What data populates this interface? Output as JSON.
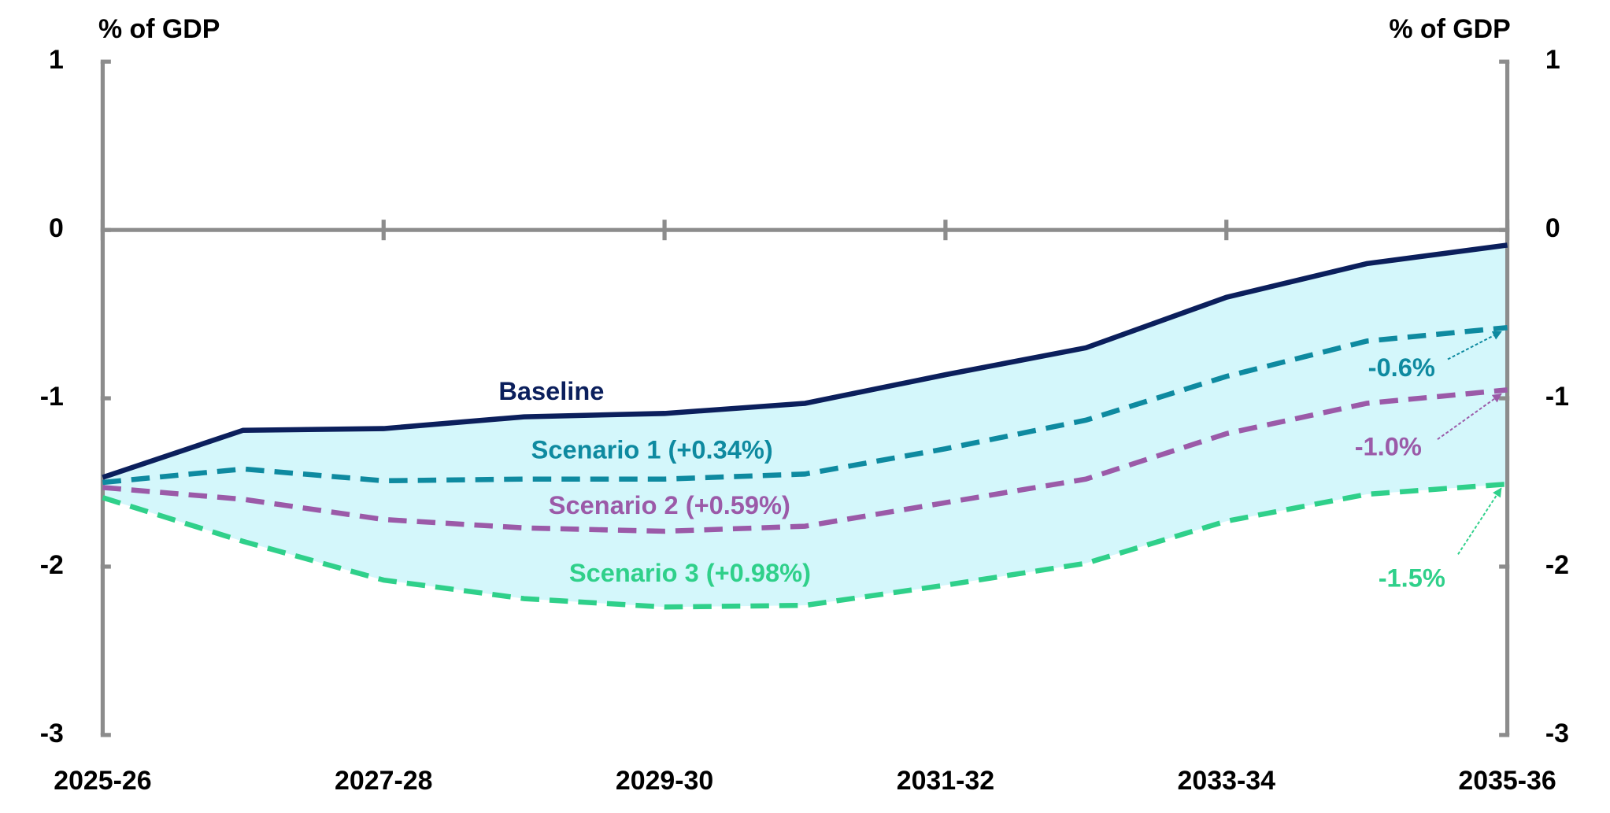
{
  "chart_data": {
    "type": "line",
    "y_label": "% of GDP",
    "y2_label": "% of GDP",
    "categories": [
      "2025-26",
      null,
      "2027-28",
      null,
      "2029-30",
      null,
      "2031-32",
      null,
      "2033-34",
      null,
      "2035-36"
    ],
    "ylim": [
      -3,
      1
    ],
    "yticks": [
      -3,
      -2,
      -1,
      0,
      1
    ],
    "y2lim": [
      -3,
      1
    ],
    "y2ticks": [
      -3,
      -2,
      -1,
      0,
      1
    ],
    "band_color": "#d4f7fb",
    "axis_color": "#8c8c8c",
    "series": [
      {
        "name": "Baseline",
        "color": "#0b1f5c",
        "dashed": false,
        "values": [
          -1.47,
          -1.19,
          -1.18,
          -1.11,
          -1.09,
          -1.03,
          -0.86,
          -0.7,
          -0.4,
          -0.2,
          -0.09
        ]
      },
      {
        "name": "Scenario 1 (+0.34%)",
        "color": "#0e8aa0",
        "dashed": true,
        "end_label": "-0.6%",
        "values": [
          -1.5,
          -1.42,
          -1.49,
          -1.48,
          -1.48,
          -1.45,
          -1.3,
          -1.13,
          -0.87,
          -0.66,
          -0.58
        ]
      },
      {
        "name": "Scenario 2 (+0.59%)",
        "color": "#9b5aa8",
        "dashed": true,
        "end_label": "-1.0%",
        "values": [
          -1.53,
          -1.6,
          -1.72,
          -1.77,
          -1.79,
          -1.76,
          -1.62,
          -1.48,
          -1.21,
          -1.03,
          -0.95
        ]
      },
      {
        "name": "Scenario 3 (+0.98%)",
        "color": "#2fd08a",
        "dashed": true,
        "end_label": "-1.5%",
        "values": [
          -1.59,
          -1.85,
          -2.08,
          -2.19,
          -2.24,
          -2.23,
          -2.11,
          -1.98,
          -1.73,
          -1.57,
          -1.51
        ]
      }
    ]
  }
}
